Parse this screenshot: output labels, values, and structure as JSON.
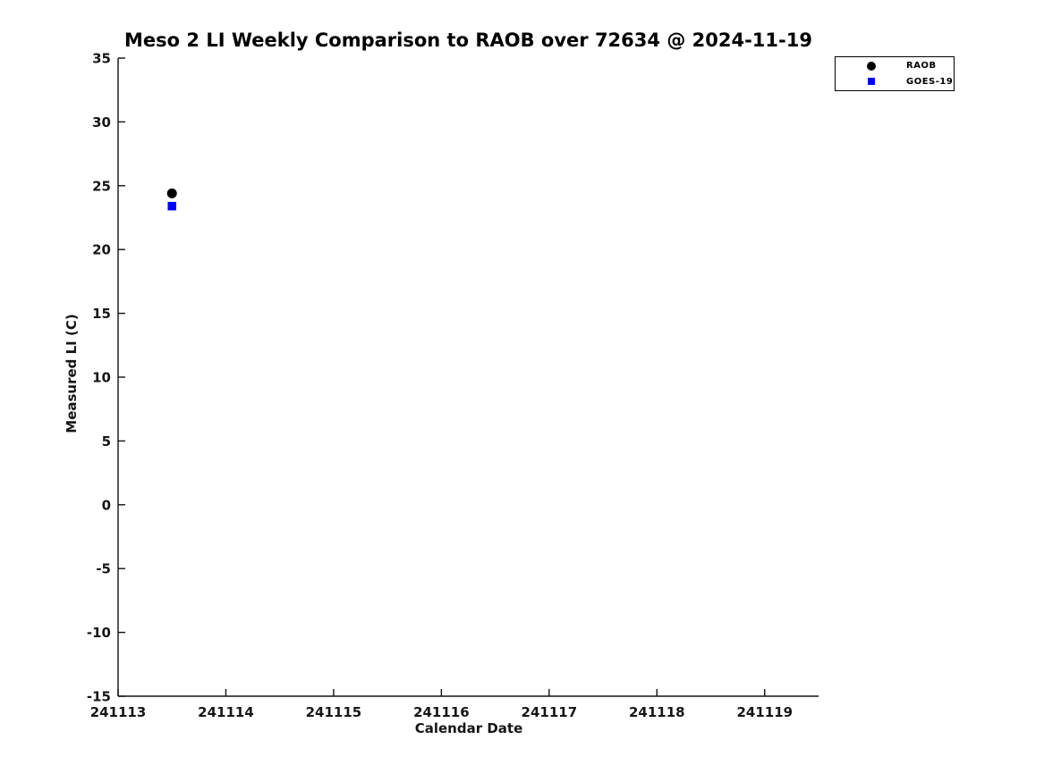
{
  "figure": {
    "background": "#ffffff"
  },
  "chart_data": {
    "type": "scatter",
    "title": "Meso 2 LI Weekly Comparison to RAOB over 72634 @ 2024-11-19",
    "xlabel": "Calendar Date",
    "ylabel": "Measured LI (C)",
    "xlim": [
      241113,
      241119.5
    ],
    "ylim": [
      -15,
      35
    ],
    "xticks": [
      241113,
      241114,
      241115,
      241116,
      241117,
      241118,
      241119
    ],
    "yticks": [
      -15,
      -10,
      -5,
      0,
      5,
      10,
      15,
      20,
      25,
      30,
      35
    ],
    "grid": false,
    "tick_direction": "in",
    "legend_position": "top-right-outside",
    "series": [
      {
        "name": "RAOB",
        "marker": "circle",
        "color": "#000000",
        "x": [
          241113.5
        ],
        "y": [
          24.4
        ]
      },
      {
        "name": "GOES-19",
        "marker": "square",
        "color": "#0000ff",
        "x": [
          241113.5
        ],
        "y": [
          23.4
        ]
      }
    ]
  }
}
